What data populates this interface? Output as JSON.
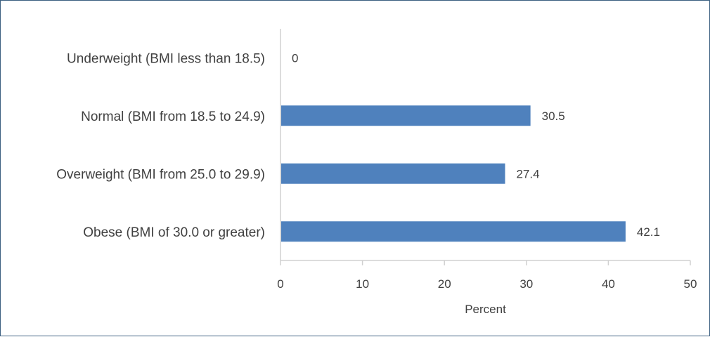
{
  "chart_data": {
    "type": "bar",
    "orientation": "horizontal",
    "categories": [
      "Underweight (BMI less than 18.5)",
      "Normal (BMI from 18.5 to 24.9)",
      "Overweight (BMI from 25.0 to 29.9)",
      "Obese (BMI of 30.0 or greater)"
    ],
    "values": [
      0,
      30.5,
      27.4,
      42.1
    ],
    "data_labels": [
      "0",
      "30.5",
      "27.4",
      "42.1"
    ],
    "xlabel": "Percent",
    "ylabel": "",
    "title": "",
    "xlim": [
      0,
      50
    ],
    "xticks": [
      0,
      10,
      20,
      30,
      40,
      50
    ],
    "grid": false,
    "legend": "none",
    "colors": {
      "bar": "#4f81bd",
      "axis": "#d0d0d0",
      "text": "#404040",
      "frame": "#3b5f80"
    }
  }
}
